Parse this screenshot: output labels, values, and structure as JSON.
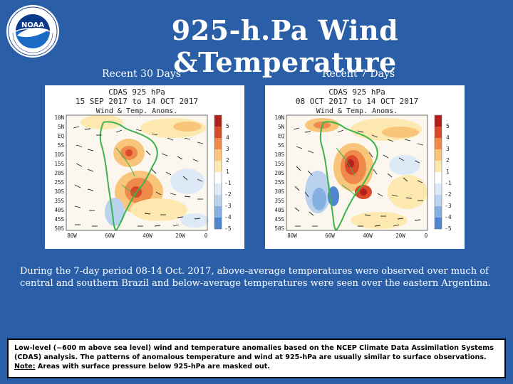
{
  "logo": {
    "text": "NOAA",
    "icon": "noaa-logo-icon",
    "seal_text": "NATIONAL OCEANIC AND ATMOSPHERIC ADMINISTRATION · U.S. DEPARTMENT OF COMMERCE"
  },
  "title": "925-h.Pa Wind &Temperature",
  "panels": [
    {
      "caption": "Recent 30 Days",
      "map_title_1": "CDAS 925 hPa",
      "map_title_2": "15 SEP 2017 to 14 OCT 2017",
      "map_title_3": "Wind & Temp. Anoms.",
      "lat_labels": [
        "10N",
        "5N",
        "EQ",
        "5S",
        "10S",
        "15S",
        "20S",
        "25S",
        "30S",
        "35S",
        "40S",
        "45S",
        "50S"
      ],
      "lon_labels": [
        "80W",
        "60W",
        "40W",
        "20W",
        "0"
      ],
      "scale_labels": [
        "5",
        "4",
        "3",
        "2",
        "1",
        "-1",
        "-2",
        "-3",
        "-4",
        "-5"
      ]
    },
    {
      "caption": "Recent 7 Days",
      "map_title_1": "CDAS 925 hPa",
      "map_title_2": "08 OCT 2017 to 14 OCT 2017",
      "map_title_3": "Wind & Temp. Anoms.",
      "lat_labels": [
        "10N",
        "5N",
        "EQ",
        "5S",
        "10S",
        "15S",
        "20S",
        "25S",
        "30S",
        "35S",
        "40S",
        "45S",
        "50S"
      ],
      "lon_labels": [
        "80W",
        "60W",
        "40W",
        "20W",
        "0"
      ],
      "scale_labels": [
        "5",
        "4",
        "3",
        "2",
        "1",
        "-1",
        "-2",
        "-3",
        "-4",
        "-5"
      ]
    }
  ],
  "description": "During the 7-day period 08-14 Oct. 2017, above-average temperatures were observed over much of central and southern Brazil and below-average temperatures were seen over the eastern Argentina.",
  "note": {
    "line1": "Low-level (~600 m above sea level) wind and temperature anomalies based on the NCEP Climate Data Assimilation Systems (CDAS) analysis. The patterns of anomalous temperature and wind at 925-hPa are usually similar to surface observations.",
    "label": "Note:",
    "line2": " Areas with surface pressure below 925-hPa are masked out."
  },
  "colors": {
    "background": "#2a5fa8",
    "warm_1": "#fde9b0",
    "warm_2": "#f8c57a",
    "warm_3": "#ef8a4a",
    "warm_4": "#d84a2a",
    "warm_5": "#b3201b",
    "cool_1": "#dde9f6",
    "cool_2": "#b9d2ee",
    "cool_3": "#86b0e2",
    "cool_4": "#4f86cf",
    "cool_5": "#2a5cb8",
    "coast": "#3cb44b"
  }
}
